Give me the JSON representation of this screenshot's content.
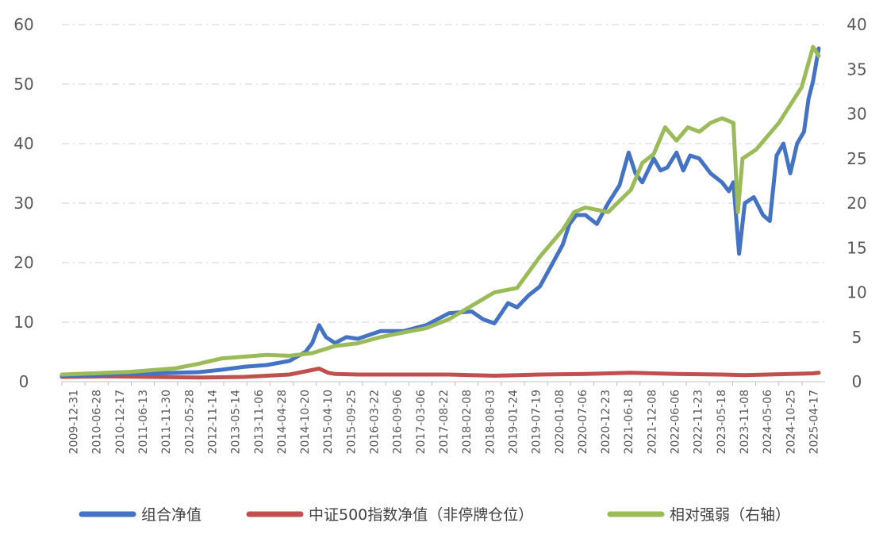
{
  "chart_data": {
    "type": "line",
    "title": "",
    "xlabel": "",
    "ylabel": "",
    "y2label": "",
    "ylim": [
      0,
      60
    ],
    "y2lim": [
      0,
      40
    ],
    "yticks": [
      0,
      10,
      20,
      30,
      40,
      50,
      60
    ],
    "y2ticks": [
      0,
      5,
      10,
      15,
      20,
      25,
      30,
      35,
      40
    ],
    "x_ticks": [
      "2009-12-31",
      "2010-06-28",
      "2010-12-17",
      "2011-06-13",
      "2011-11-30",
      "2012-05-28",
      "2012-11-14",
      "2013-05-14",
      "2013-11-06",
      "2014-04-28",
      "2014-10-20",
      "2015-04-10",
      "2015-09-25",
      "2016-03-22",
      "2016-09-06",
      "2017-03-06",
      "2017-08-22",
      "2018-02-08",
      "2018-08-03",
      "2019-01-24",
      "2019-07-19",
      "2020-01-08",
      "2020-07-06",
      "2020-12-23",
      "2021-06-18",
      "2021-12-08",
      "2022-06-06",
      "2022-11-23",
      "2023-05-18",
      "2023-11-08",
      "2024-05-06",
      "2024-10-25",
      "2025-04-17"
    ],
    "grid": true,
    "legend_position": "bottom",
    "series": [
      {
        "name": "组合净值",
        "axis": "left",
        "color": "#4472C4",
        "values": [
          [
            0,
            1.0
          ],
          [
            1,
            1.1
          ],
          [
            2,
            1.2
          ],
          [
            3,
            1.3
          ],
          [
            4,
            1.4
          ],
          [
            5,
            1.5
          ],
          [
            6,
            1.6
          ],
          [
            7,
            2.0
          ],
          [
            8,
            2.5
          ],
          [
            9,
            2.8
          ],
          [
            10,
            3.5
          ],
          [
            10.7,
            5.0
          ],
          [
            11.0,
            6.5
          ],
          [
            11.3,
            9.5
          ],
          [
            11.6,
            7.5
          ],
          [
            12,
            6.5
          ],
          [
            12.5,
            7.5
          ],
          [
            13,
            7.2
          ],
          [
            14,
            8.5
          ],
          [
            15,
            8.5
          ],
          [
            16,
            9.5
          ],
          [
            16.5,
            10.5
          ],
          [
            17,
            11.5
          ],
          [
            18,
            11.8
          ],
          [
            18.5,
            10.5
          ],
          [
            19,
            9.8
          ],
          [
            19.3,
            11.5
          ],
          [
            19.6,
            13.2
          ],
          [
            20,
            12.5
          ],
          [
            20.5,
            14.5
          ],
          [
            21,
            16.0
          ],
          [
            21.5,
            19.5
          ],
          [
            22,
            23.0
          ],
          [
            22.3,
            26.5
          ],
          [
            22.6,
            28.0
          ],
          [
            23,
            28.0
          ],
          [
            23.5,
            26.5
          ],
          [
            24,
            30.0
          ],
          [
            24.5,
            33.0
          ],
          [
            24.9,
            38.5
          ],
          [
            25.2,
            35.0
          ],
          [
            25.5,
            33.5
          ],
          [
            26,
            37.5
          ],
          [
            26.3,
            35.5
          ],
          [
            26.6,
            36.0
          ],
          [
            27,
            38.5
          ],
          [
            27.3,
            35.5
          ],
          [
            27.6,
            38.0
          ],
          [
            28,
            37.5
          ],
          [
            28.5,
            35.0
          ],
          [
            29,
            33.5
          ],
          [
            29.3,
            32.0
          ],
          [
            29.5,
            33.5
          ],
          [
            29.75,
            21.5
          ],
          [
            30.0,
            30.0
          ],
          [
            30.4,
            31.0
          ],
          [
            30.8,
            28.0
          ],
          [
            31.1,
            27.0
          ],
          [
            31.4,
            38.0
          ],
          [
            31.7,
            40.0
          ],
          [
            32,
            35.0
          ],
          [
            32.3,
            40.0
          ],
          [
            32.6,
            42.0
          ],
          [
            32.8,
            47.5
          ],
          [
            33.0,
            50.5
          ],
          [
            33.25,
            56.0
          ]
        ]
      },
      {
        "name": "中证500指数净值（非停牌仓位）",
        "axis": "left",
        "color": "#C0504D",
        "values": [
          [
            0,
            0.8
          ],
          [
            2,
            0.9
          ],
          [
            4,
            0.8
          ],
          [
            6,
            0.7
          ],
          [
            8,
            0.8
          ],
          [
            10,
            1.2
          ],
          [
            11.3,
            2.2
          ],
          [
            11.7,
            1.5
          ],
          [
            12,
            1.3
          ],
          [
            13,
            1.2
          ],
          [
            15,
            1.2
          ],
          [
            17,
            1.2
          ],
          [
            19,
            1.0
          ],
          [
            21,
            1.2
          ],
          [
            23,
            1.3
          ],
          [
            25,
            1.5
          ],
          [
            27,
            1.3
          ],
          [
            29,
            1.2
          ],
          [
            30,
            1.1
          ],
          [
            31,
            1.2
          ],
          [
            32,
            1.3
          ],
          [
            33,
            1.4
          ],
          [
            33.25,
            1.5
          ]
        ]
      },
      {
        "name": "相对强弱（右轴）",
        "axis": "right",
        "color": "#9BBB59",
        "values": [
          [
            0,
            0.8
          ],
          [
            1,
            0.9
          ],
          [
            2,
            1.0
          ],
          [
            3,
            1.1
          ],
          [
            4,
            1.3
          ],
          [
            5,
            1.5
          ],
          [
            6,
            2.0
          ],
          [
            7,
            2.6
          ],
          [
            8,
            2.8
          ],
          [
            9,
            3.0
          ],
          [
            10,
            2.9
          ],
          [
            11,
            3.2
          ],
          [
            12,
            4.0
          ],
          [
            13,
            4.3
          ],
          [
            14,
            5.0
          ],
          [
            15,
            5.5
          ],
          [
            16,
            6.0
          ],
          [
            17,
            7.0
          ],
          [
            18,
            8.5
          ],
          [
            19,
            10.0
          ],
          [
            20,
            10.5
          ],
          [
            21,
            14.0
          ],
          [
            22,
            17.0
          ],
          [
            22.5,
            19.0
          ],
          [
            23,
            19.5
          ],
          [
            24,
            19.0
          ],
          [
            25,
            21.5
          ],
          [
            25.5,
            24.5
          ],
          [
            26,
            25.5
          ],
          [
            26.5,
            28.5
          ],
          [
            27,
            27.0
          ],
          [
            27.5,
            28.5
          ],
          [
            28,
            28.0
          ],
          [
            28.5,
            29.0
          ],
          [
            29,
            29.5
          ],
          [
            29.5,
            29.0
          ],
          [
            29.7,
            19.0
          ],
          [
            29.9,
            25.0
          ],
          [
            30.5,
            26.0
          ],
          [
            31,
            27.5
          ],
          [
            31.5,
            29.0
          ],
          [
            32,
            31.0
          ],
          [
            32.5,
            33.0
          ],
          [
            33.0,
            37.5
          ],
          [
            33.25,
            36.5
          ]
        ]
      }
    ]
  }
}
